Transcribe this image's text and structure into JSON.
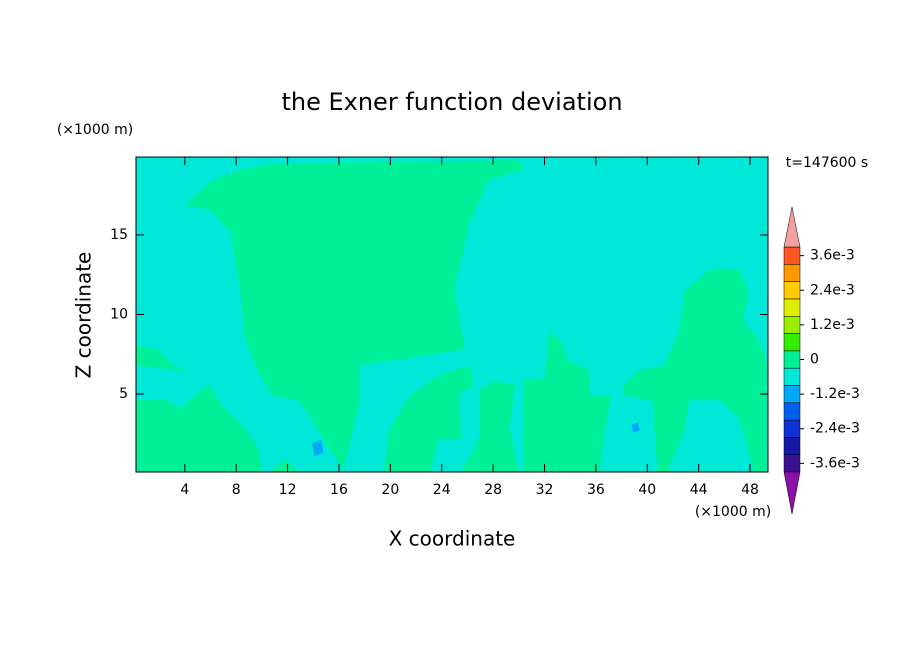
{
  "chart_data": {
    "type": "contour",
    "title": "the Exner function deviation",
    "xlabel": "X coordinate",
    "ylabel": "Z coordinate",
    "x_unit": "(×1000 m)",
    "y_unit": "(×1000 m)",
    "time_label": "t=147600 s",
    "xlim": [
      0.2,
      49.4
    ],
    "ylim": [
      0.1,
      19.9
    ],
    "xticks": [
      4,
      8,
      12,
      16,
      20,
      24,
      28,
      32,
      36,
      40,
      44,
      48
    ],
    "yticks": [
      5,
      10,
      15
    ],
    "background_level": -0.0006,
    "regions": [
      {
        "level": 0,
        "x": [
          4.0,
          6.3,
          8.3,
          10.6,
          30.0,
          30.4,
          27.7,
          26.2,
          25.0,
          25.8,
          17.6,
          17.6,
          16.4,
          15.3,
          12.9,
          10.8,
          9.8,
          8.7,
          8.3,
          7.5,
          5.9
        ],
        "y": [
          16.9,
          18.5,
          19.1,
          19.5,
          19.7,
          19.1,
          18.5,
          15.9,
          11.5,
          7.8,
          6.8,
          4.6,
          0.2,
          1.5,
          4.6,
          4.9,
          6.2,
          8.4,
          11.5,
          15.3,
          16.6
        ]
      },
      {
        "level": 0,
        "x": [
          0.2,
          2.4,
          3.6,
          5.9,
          7.1,
          8.7,
          9.8,
          10.0,
          0.2
        ],
        "y": [
          4.6,
          4.7,
          4.1,
          5.6,
          4.1,
          2.8,
          1.5,
          0.1,
          0.1
        ]
      },
      {
        "level": 0,
        "x": [
          19.5,
          19.9,
          21.5,
          23.8,
          26.2,
          26.5,
          25.4,
          25.5,
          23.8,
          23.1
        ],
        "y": [
          0.1,
          2.7,
          4.9,
          6.2,
          6.8,
          5.6,
          5.0,
          2.2,
          2.2,
          0.1
        ]
      },
      {
        "level": 0,
        "x": [
          25.5,
          26.9,
          26.9,
          28.1,
          29.7,
          29.3,
          30.0
        ],
        "y": [
          0.1,
          2.2,
          5.3,
          5.8,
          5.6,
          2.8,
          0.1
        ]
      },
      {
        "level": 0,
        "x": [
          30.4,
          30.4,
          32.0,
          32.4,
          33.2,
          33.9,
          35.5,
          35.5,
          37.2,
          36.7,
          36.3
        ],
        "y": [
          0.1,
          5.9,
          6.0,
          9.0,
          8.4,
          7.1,
          6.5,
          4.9,
          4.9,
          2.7,
          0.1
        ]
      },
      {
        "level": 0,
        "x": [
          38.2,
          39.4,
          41.3,
          42.5,
          42.9,
          44.8,
          47.2,
          47.9,
          47.5,
          48.7,
          49.3,
          49.3,
          48.3,
          47.2,
          45.7,
          43.3,
          42.9,
          41.6,
          40.8,
          40.4,
          38.2
        ],
        "y": [
          5.6,
          6.5,
          6.8,
          9.0,
          11.5,
          12.8,
          12.8,
          11.5,
          9.6,
          8.4,
          7.1,
          0.1,
          0.1,
          3.4,
          4.6,
          4.6,
          2.7,
          0.1,
          0.1,
          4.6,
          4.9
        ]
      },
      {
        "level": 0,
        "x": [
          0.2,
          1.9,
          3.1,
          4.3,
          0.2
        ],
        "y": [
          8.1,
          7.8,
          6.8,
          6.4,
          6.8
        ]
      },
      {
        "level": 0,
        "x": [
          10.6,
          11.8,
          12.9
        ],
        "y": [
          0.1,
          0.9,
          0.1
        ]
      },
      {
        "level": -0.0012,
        "x": [
          13.9,
          14.6,
          14.8,
          14.1
        ],
        "y": [
          1.9,
          2.1,
          1.3,
          1.1
        ]
      },
      {
        "level": -0.0012,
        "x": [
          38.8,
          39.3,
          39.4,
          38.9
        ],
        "y": [
          3.1,
          3.2,
          2.7,
          2.6
        ]
      }
    ],
    "colorbar": {
      "bounds": [
        -0.0039,
        -0.0033,
        -0.0027,
        -0.0021,
        -0.0015,
        -0.0009,
        -0.0003,
        0.0003,
        0.0009,
        0.0015,
        0.0021,
        0.0027,
        0.0033,
        0.0039
      ],
      "colors": [
        "#3a1090",
        "#1818a8",
        "#1030d8",
        "#0060f0",
        "#00a8f8",
        "#00e8d8",
        "#00f09a",
        "#33ee00",
        "#99ee00",
        "#ddee00",
        "#ffcc00",
        "#ff9900",
        "#ff5522"
      ],
      "under_color": "#8a10a8",
      "over_color": "#f4a0a0",
      "ticks": [
        {
          "value": 0.0036,
          "label": "3.6e-3"
        },
        {
          "value": 0.0024,
          "label": "2.4e-3"
        },
        {
          "value": 0.0012,
          "label": "1.2e-3"
        },
        0,
        {
          "value": -0.0012,
          "label": "-1.2e-3"
        },
        {
          "value": -0.0024,
          "label": "-2.4e-3"
        },
        {
          "value": -0.0036,
          "label": "-3.6e-3"
        }
      ]
    }
  }
}
